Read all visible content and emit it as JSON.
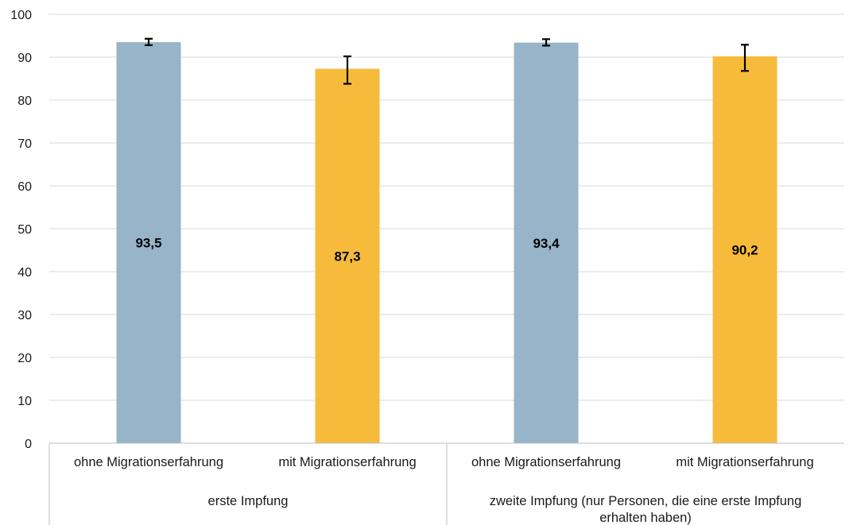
{
  "chart_data": {
    "type": "bar",
    "title": "",
    "xlabel": "",
    "ylabel": "",
    "ylim": [
      0,
      100
    ],
    "y_ticks": [
      "0",
      "10",
      "20",
      "30",
      "40",
      "50",
      "60",
      "70",
      "80",
      "90",
      "100"
    ],
    "grid": true,
    "groups": [
      {
        "label": "erste Impfung",
        "bars": [
          {
            "category": "ohne Migrationserfahrung",
            "value": 93.5,
            "value_label": "93,5",
            "error_low": 92.8,
            "error_high": 94.3,
            "color": "#97b4c8"
          },
          {
            "category": "mit Migrationserfahrung",
            "value": 87.3,
            "value_label": "87,3",
            "error_low": 83.8,
            "error_high": 90.2,
            "color": "#f7bb3c"
          }
        ]
      },
      {
        "label": "zweite Impfung (nur Personen, die eine erste Impfung erhalten haben)",
        "label_lines": [
          "zweite Impfung (nur Personen, die eine erste Impfung",
          "erhalten haben)"
        ],
        "bars": [
          {
            "category": "ohne Migrationserfahrung",
            "value": 93.4,
            "value_label": "93,4",
            "error_low": 92.7,
            "error_high": 94.2,
            "color": "#97b4c8"
          },
          {
            "category": "mit Migrationserfahrung",
            "value": 90.2,
            "value_label": "90,2",
            "error_low": 86.8,
            "error_high": 92.9,
            "color": "#f7bb3c"
          }
        ]
      }
    ]
  }
}
